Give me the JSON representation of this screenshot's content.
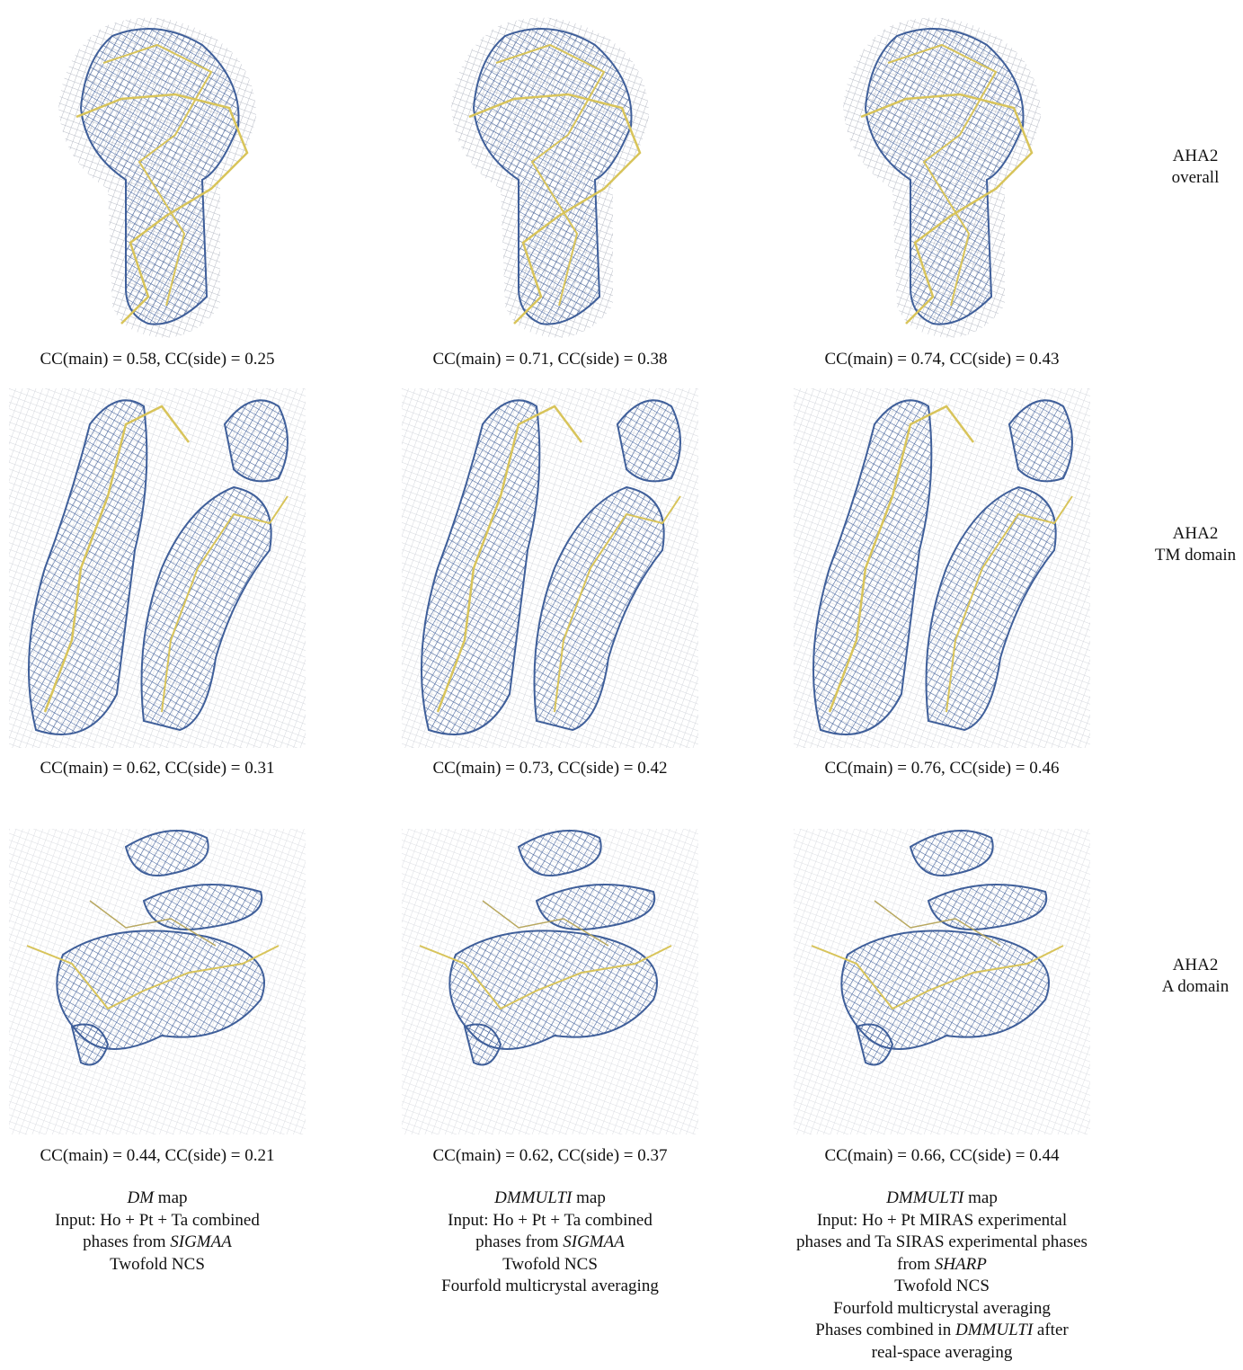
{
  "rows": [
    {
      "label_lines": [
        "AHA2",
        "overall"
      ],
      "captions": [
        "CC(main) = 0.58, CC(side) = 0.25",
        "CC(main) = 0.71, CC(side) = 0.38",
        "CC(main) = 0.74, CC(side) = 0.43"
      ]
    },
    {
      "label_lines": [
        "AHA2",
        "TM domain"
      ],
      "captions": [
        "CC(main) = 0.62, CC(side) = 0.31",
        "CC(main) = 0.73, CC(side) = 0.42",
        "CC(main) = 0.76, CC(side) = 0.46"
      ]
    },
    {
      "label_lines": [
        "AHA2",
        "A domain"
      ],
      "captions": [
        "CC(main) = 0.44, CC(side) = 0.21",
        "CC(main) = 0.62, CC(side) = 0.37",
        "CC(main) = 0.66, CC(side) = 0.44"
      ]
    }
  ],
  "columns": [
    {
      "lines": [
        [
          {
            "text": "DM",
            "italic": true
          },
          {
            "text": " map"
          }
        ],
        [
          {
            "text": "Input: Ho + Pt + Ta combined"
          }
        ],
        [
          {
            "text": "phases from "
          },
          {
            "text": "SIGMAA",
            "italic": true
          }
        ],
        [
          {
            "text": "Twofold NCS"
          }
        ]
      ]
    },
    {
      "lines": [
        [
          {
            "text": "DMMULTI",
            "italic": true
          },
          {
            "text": " map"
          }
        ],
        [
          {
            "text": "Input: Ho + Pt + Ta combined"
          }
        ],
        [
          {
            "text": "phases from "
          },
          {
            "text": "SIGMAA",
            "italic": true
          }
        ],
        [
          {
            "text": "Twofold NCS"
          }
        ],
        [
          {
            "text": "Fourfold multicrystal averaging"
          }
        ]
      ]
    },
    {
      "lines": [
        [
          {
            "text": "DMMULTI",
            "italic": true
          },
          {
            "text": " map"
          }
        ],
        [
          {
            "text": "Input: Ho + Pt MIRAS experimental"
          }
        ],
        [
          {
            "text": "phases and Ta SIRAS experimental phases"
          }
        ],
        [
          {
            "text": "from "
          },
          {
            "text": "SHARP",
            "italic": true
          }
        ],
        [
          {
            "text": "Twofold NCS"
          }
        ],
        [
          {
            "text": "Fourfold multicrystal averaging"
          }
        ],
        [
          {
            "text": "Phases combined in "
          },
          {
            "text": "DMMULTI",
            "italic": true
          },
          {
            "text": " after"
          }
        ],
        [
          {
            "text": "real-space averaging"
          }
        ]
      ]
    }
  ]
}
